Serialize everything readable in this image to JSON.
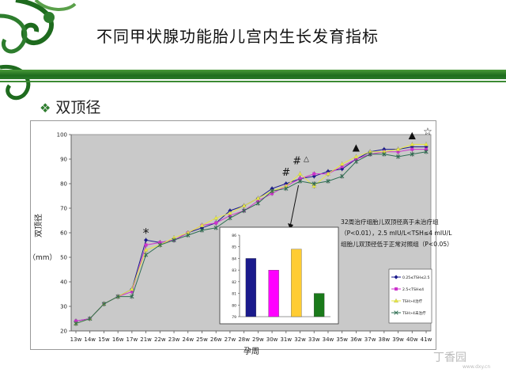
{
  "slide": {
    "title": "不同甲状腺功能胎儿宫内生长发育指标",
    "bullet_symbol": "❖",
    "subtitle": "双顶径",
    "watermark": "丁香园",
    "watermark_sub": "www.dxy.cn"
  },
  "colors": {
    "green_dark": "#1f6d1e",
    "plot_bg": "#c9c9c9",
    "series_blue": "#1a1a8c",
    "series_magenta": "#cc33cc",
    "series_yellow": "#e8e840",
    "series_green": "#2e6e52"
  },
  "chart_data": [
    {
      "type": "line",
      "title": "",
      "xlabel": "孕周",
      "ylabel_parts": [
        "双顶径",
        "（mm）"
      ],
      "ylim": [
        20,
        100
      ],
      "yticks": [
        20,
        30,
        40,
        50,
        60,
        70,
        80,
        90,
        100
      ],
      "grid": false,
      "legend_position": "right-inside",
      "error_bars": true,
      "x": [
        "13w",
        "14w",
        "15w",
        "16w",
        "17w",
        "21w",
        "22w",
        "23w",
        "24w",
        "25w",
        "26w",
        "27w",
        "28w",
        "29w",
        "30w",
        "31w",
        "32w",
        "33w",
        "34w",
        "35w",
        "36w",
        "37w",
        "38w",
        "39w",
        "40w",
        "41w"
      ],
      "series": [
        {
          "name": "0.25≤TSH≤2.5",
          "color": "#1a1a8c",
          "marker": "diamond",
          "values": [
            24,
            25,
            31,
            34,
            37,
            57,
            56,
            57,
            60,
            62,
            64,
            69,
            71,
            74,
            78,
            80,
            82,
            83,
            85,
            86,
            90,
            93,
            94,
            94,
            95,
            95
          ]
        },
        {
          "name": "2.5<TSH≤4",
          "color": "#cc33cc",
          "marker": "square",
          "values": [
            24,
            25,
            31,
            34,
            36,
            55,
            56,
            57,
            60,
            63,
            64,
            67,
            69,
            73,
            76,
            79,
            82,
            84,
            84,
            87,
            90,
            92,
            93,
            93,
            94,
            94
          ]
        },
        {
          "name": "TSH>4治疗",
          "color": "#e8e840",
          "marker": "triangle",
          "values": [
            23,
            25,
            31,
            34,
            37,
            53,
            55,
            58,
            60,
            63,
            66,
            68,
            71,
            74,
            77,
            79,
            84,
            79,
            84,
            88,
            91,
            93,
            93,
            94,
            96,
            96
          ]
        },
        {
          "name": "TSH>4未治疗",
          "color": "#2e6e52",
          "marker": "x",
          "values": [
            23,
            25,
            31,
            34,
            34,
            51,
            55,
            57,
            59,
            61,
            62,
            66,
            69,
            72,
            77,
            78,
            81,
            80,
            81,
            83,
            89,
            92,
            92,
            91,
            92,
            93
          ]
        }
      ],
      "annotations": [
        {
          "text": "*",
          "x": "21w"
        },
        {
          "text": "#",
          "x": "31w"
        },
        {
          "text": "#",
          "x": "32w"
        },
        {
          "text": "△",
          "x": "32w"
        },
        {
          "text": "▲",
          "x": "36w"
        },
        {
          "text": "▲",
          "x": "40w"
        },
        {
          "text": "☆",
          "x": "41w"
        }
      ],
      "note_lines": [
        "32周治疗组胎儿双顶径高于未治疗组",
        "（P<0.01），2.5 mIU/L<TSH≤4 mIU/L",
        "组胎儿双顶径低于正常对照组（P<0.05）"
      ]
    },
    {
      "type": "bar",
      "title": "",
      "ylim": [
        79,
        86
      ],
      "yticks": [
        79,
        80,
        81,
        82,
        83,
        84,
        85,
        86
      ],
      "grid": false,
      "categories": [
        "",
        "",
        "",
        ""
      ],
      "values": [
        84.0,
        83.0,
        84.8,
        81.0
      ],
      "colors": [
        "#1a1a8c",
        "#ff00ff",
        "#ffcc33",
        "#1a7a1a"
      ]
    }
  ]
}
